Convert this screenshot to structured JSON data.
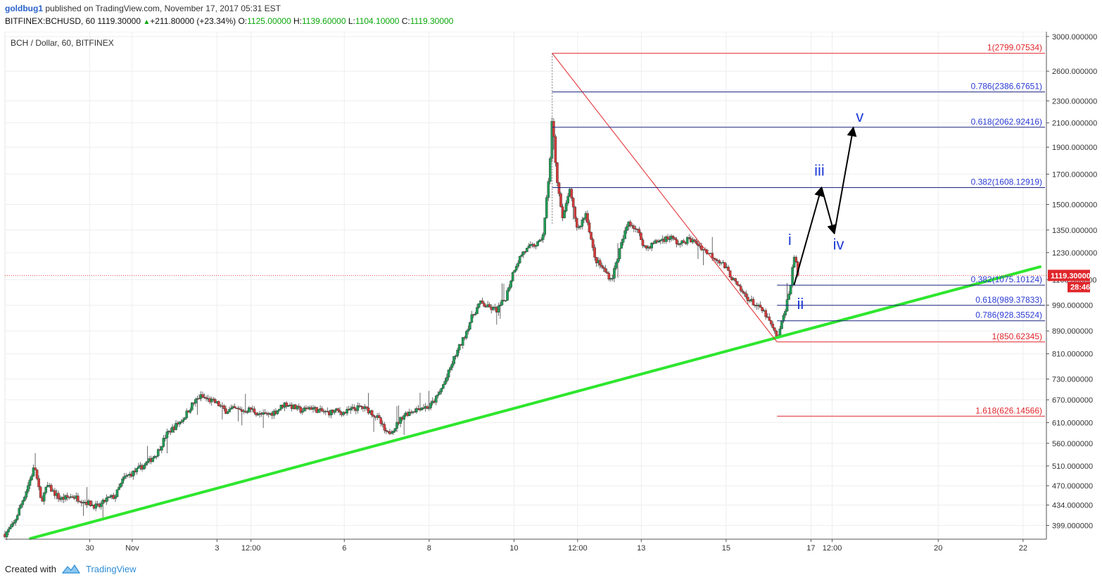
{
  "header": {
    "user": "goldbug1",
    "published_text": "published on TradingView.com, November 17, 2017 05:31 EST",
    "symbol": "BITFINEX:BCHUSD, 60",
    "last": "1119.30000",
    "change": "+211.80000 (+23.34%)",
    "o_label": "O:",
    "o_value": "1125.00000",
    "h_label": "H:",
    "h_value": "1139.60000",
    "l_label": "L:",
    "l_value": "1104.10000",
    "c_label": "C:",
    "c_value": "1119.30000"
  },
  "chart_data": {
    "type": "candlestick",
    "title": "BCH / Dollar, 60, BITFINEX",
    "y_scale": "log",
    "ylim": [
      377,
      3060
    ],
    "grid": true,
    "y_ticks": [
      399,
      434,
      470,
      510,
      560,
      610,
      670,
      730,
      810,
      890,
      990,
      1100,
      1230,
      1350,
      1500,
      1700,
      1900,
      2100,
      2300,
      2600,
      3000
    ],
    "y_tick_labels": [
      "399.000000",
      "434.000000",
      "470.000000",
      "510.000000",
      "560.000000",
      "610.000000",
      "670.000000",
      "730.000000",
      "810.000000",
      "890.000000",
      "990.000000",
      "1100.000000",
      "1230.000000",
      "1350.000000",
      "1500.000000",
      "1700.000000",
      "1900.000000",
      "2100.000000",
      "2300.000000",
      "2600.000000",
      "3000.000000"
    ],
    "x_ticks": [
      {
        "label": "30",
        "t": 2.0
      },
      {
        "label": "Nov",
        "t": 3.0
      },
      {
        "label": "3",
        "t": 5.0
      },
      {
        "label": "12:00",
        "t": 5.8
      },
      {
        "label": "6",
        "t": 8.0
      },
      {
        "label": "8",
        "t": 10.0
      },
      {
        "label": "10",
        "t": 12.0
      },
      {
        "label": "12:00",
        "t": 13.5
      },
      {
        "label": "13",
        "t": 15.0
      },
      {
        "label": "15",
        "t": 17.0
      },
      {
        "label": "17",
        "t": 19.0
      },
      {
        "label": "12:00",
        "t": 19.5
      },
      {
        "label": "20",
        "t": 22.0
      },
      {
        "label": "22",
        "t": 24.0
      }
    ],
    "price_anchors": [
      [
        0.0,
        385
      ],
      [
        0.2,
        400
      ],
      [
        0.5,
        460
      ],
      [
        0.7,
        510
      ],
      [
        0.85,
        440
      ],
      [
        1.0,
        470
      ],
      [
        1.3,
        445
      ],
      [
        1.6,
        450
      ],
      [
        1.9,
        440
      ],
      [
        2.2,
        430
      ],
      [
        2.4,
        445
      ],
      [
        2.6,
        450
      ],
      [
        2.8,
        485
      ],
      [
        3.1,
        500
      ],
      [
        3.4,
        520
      ],
      [
        3.6,
        540
      ],
      [
        3.8,
        580
      ],
      [
        4.0,
        600
      ],
      [
        4.2,
        620
      ],
      [
        4.4,
        655
      ],
      [
        4.6,
        680
      ],
      [
        4.8,
        670
      ],
      [
        5.0,
        660
      ],
      [
        5.2,
        640
      ],
      [
        5.4,
        645
      ],
      [
        5.6,
        640
      ],
      [
        5.8,
        645
      ],
      [
        6.0,
        630
      ],
      [
        6.2,
        630
      ],
      [
        6.4,
        640
      ],
      [
        6.6,
        660
      ],
      [
        6.8,
        650
      ],
      [
        7.0,
        640
      ],
      [
        7.2,
        650
      ],
      [
        7.4,
        640
      ],
      [
        7.6,
        635
      ],
      [
        7.8,
        640
      ],
      [
        8.0,
        635
      ],
      [
        8.2,
        645
      ],
      [
        8.4,
        650
      ],
      [
        8.6,
        640
      ],
      [
        8.8,
        620
      ],
      [
        9.0,
        580
      ],
      [
        9.2,
        600
      ],
      [
        9.4,
        630
      ],
      [
        9.6,
        640
      ],
      [
        9.8,
        650
      ],
      [
        10.0,
        650
      ],
      [
        10.2,
        680
      ],
      [
        10.4,
        730
      ],
      [
        10.6,
        800
      ],
      [
        10.8,
        860
      ],
      [
        11.0,
        940
      ],
      [
        11.2,
        1000
      ],
      [
        11.4,
        980
      ],
      [
        11.6,
        970
      ],
      [
        11.8,
        1020
      ],
      [
        12.0,
        1150
      ],
      [
        12.2,
        1230
      ],
      [
        12.4,
        1260
      ],
      [
        12.6,
        1280
      ],
      [
        12.7,
        1340
      ],
      [
        12.85,
        1800
      ],
      [
        12.9,
        2150
      ],
      [
        13.0,
        1700
      ],
      [
        13.15,
        1400
      ],
      [
        13.3,
        1600
      ],
      [
        13.5,
        1350
      ],
      [
        13.7,
        1450
      ],
      [
        13.9,
        1200
      ],
      [
        14.1,
        1150
      ],
      [
        14.3,
        1100
      ],
      [
        14.5,
        1250
      ],
      [
        14.7,
        1400
      ],
      [
        14.9,
        1350
      ],
      [
        15.1,
        1250
      ],
      [
        15.3,
        1280
      ],
      [
        15.5,
        1300
      ],
      [
        15.7,
        1310
      ],
      [
        15.9,
        1270
      ],
      [
        16.1,
        1300
      ],
      [
        16.3,
        1280
      ],
      [
        16.5,
        1240
      ],
      [
        16.7,
        1210
      ],
      [
        16.9,
        1180
      ],
      [
        17.1,
        1120
      ],
      [
        17.3,
        1060
      ],
      [
        17.5,
        1020
      ],
      [
        17.7,
        990
      ],
      [
        17.9,
        960
      ],
      [
        18.1,
        900
      ],
      [
        18.2,
        860
      ],
      [
        18.3,
        910
      ],
      [
        18.4,
        980
      ],
      [
        18.5,
        1050
      ],
      [
        18.6,
        1220
      ],
      [
        18.7,
        1119.3
      ]
    ],
    "fib_lines": [
      {
        "label": "1(2799.07534)",
        "value": 2799.07534,
        "color": "#e0262b",
        "t0": 12.9
      },
      {
        "label": "0.786(2386.67651)",
        "value": 2386.67651,
        "color": "#1a237e",
        "t0": 12.9
      },
      {
        "label": "0.618(2062.92416)",
        "value": 2062.92416,
        "color": "#1a237e",
        "t0": 12.9
      },
      {
        "label": "0.382(1608.12919)",
        "value": 1608.12919,
        "color": "#1a237e",
        "t0": 12.9
      },
      {
        "label": "0.382(1075.10124)",
        "value": 1075.10124,
        "color": "#1a237e",
        "t0": 18.2
      },
      {
        "label": "0.618(989.37833)",
        "value": 989.37833,
        "color": "#1a237e",
        "t0": 18.2
      },
      {
        "label": "0.786(928.35524)",
        "value": 928.35524,
        "color": "#1a237e",
        "t0": 18.2
      },
      {
        "label": "1(850.62345)",
        "value": 850.62345,
        "color": "#e0262b",
        "t0": 18.2
      },
      {
        "label": "1.618(626.14566)",
        "value": 626.14566,
        "color": "#e0262b",
        "t0": 18.2
      }
    ],
    "fib_label_colors": {
      "ratio": "#2a3bd4",
      "red": "#e0262b"
    },
    "red_trend": [
      [
        12.9,
        2799.07534
      ],
      [
        18.2,
        850.62345
      ]
    ],
    "green_trendline": {
      "start": [
        0.6,
        378
      ],
      "end": [
        24.4,
        1160
      ],
      "color": "#2ee62e"
    },
    "wave_path": [
      [
        18.6,
        1075
      ],
      [
        19.25,
        1610
      ],
      [
        19.55,
        1330
      ],
      [
        20.0,
        2062
      ]
    ],
    "wave_labels": [
      {
        "text": "i",
        "t": 18.5,
        "price": 1270
      },
      {
        "text": "ii",
        "t": 18.75,
        "price": 975
      },
      {
        "text": "iii",
        "t": 19.2,
        "price": 1690
      },
      {
        "text": "iv",
        "t": 19.65,
        "price": 1245
      },
      {
        "text": "v",
        "t": 20.15,
        "price": 2110
      }
    ],
    "wave_label_color": "#1f3bd6",
    "last_price": {
      "value": 1119.3,
      "label": "1119.30000",
      "countdown": "28:46",
      "color": "#e0262b"
    }
  },
  "footer": {
    "created_with": "Created with",
    "brand": "TradingView"
  }
}
